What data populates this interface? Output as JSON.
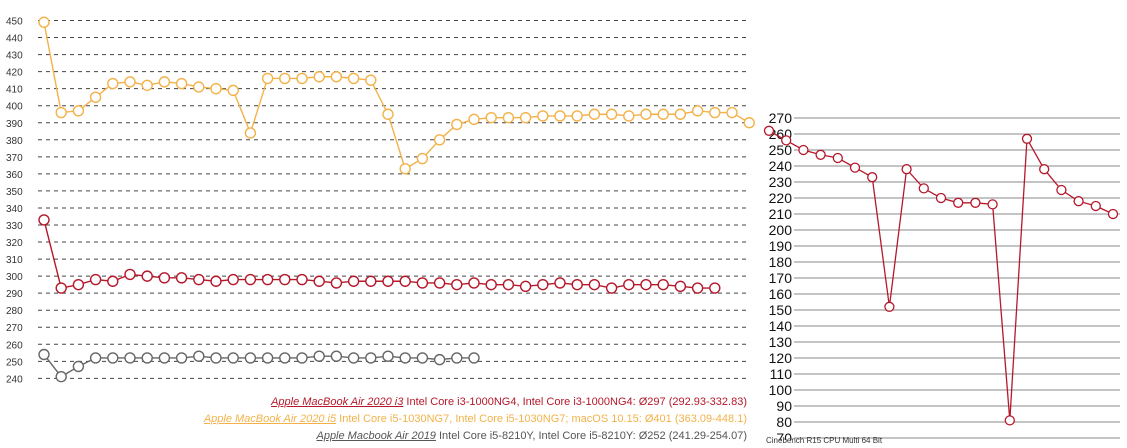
{
  "chart_data": [
    {
      "type": "line",
      "ylim": [
        232,
        455
      ],
      "y_ticks": [
        240,
        250,
        260,
        270,
        280,
        290,
        300,
        310,
        320,
        330,
        340,
        350,
        360,
        370,
        380,
        390,
        400,
        410,
        420,
        430,
        440,
        450
      ],
      "grid": true,
      "series": [
        {
          "name": "Apple MacBook Air 2020 i5",
          "color": "#f3b249",
          "values": [
            449,
            396,
            397,
            405,
            413,
            414,
            412,
            414,
            413,
            411,
            410,
            409,
            384,
            416,
            416,
            416,
            417,
            417,
            416,
            415,
            395,
            363,
            369,
            380,
            389,
            392,
            393,
            393,
            393,
            394,
            394,
            394,
            395,
            395,
            394,
            395,
            395,
            395,
            397,
            396,
            396,
            390
          ]
        },
        {
          "name": "Apple MacBook Air 2020 i3",
          "color": "#b5182b",
          "values": [
            333,
            293,
            295,
            298,
            297,
            301,
            300,
            299,
            299,
            298,
            297,
            298,
            298,
            298,
            298,
            298,
            297,
            296,
            297,
            297,
            297,
            297,
            296,
            296,
            295,
            296,
            295,
            295,
            294,
            295,
            296,
            295,
            295,
            293,
            295,
            295,
            295,
            294,
            293,
            293
          ]
        },
        {
          "name": "Apple Macbook Air 2019",
          "color": "#666666",
          "values": [
            254,
            241,
            247,
            252,
            252,
            252,
            252,
            252,
            252,
            253,
            252,
            252,
            252,
            252,
            252,
            252,
            253,
            253,
            252,
            252,
            253,
            252,
            252,
            251,
            252,
            252
          ]
        }
      ],
      "legend": [
        {
          "name": "Apple MacBook Air 2020 i3",
          "detail": " Intel Core i3-1000NG4, Intel Core i3-1000NG4: Ø297 (292.93-332.83)",
          "color": "#b5182b",
          "detail_color": "#b5182b"
        },
        {
          "name": "Apple MacBook Air 2020 i5",
          "detail": " Intel Core i5-1030NG7, Intel Core i5-1030NG7; macOS 10.15: Ø401 (363.09-448.1)",
          "color": "#f3b249",
          "detail_color": "#f3b249"
        },
        {
          "name": "Apple Macbook Air 2019",
          "detail": " Intel Core i5-8210Y, Intel Core i5-8210Y: Ø252 (241.29-254.07)",
          "color": "#555555",
          "detail_color": "#555555"
        }
      ]
    },
    {
      "type": "line",
      "title": "Cinebench R15 CPU Multi 64 Bit",
      "ylim": [
        70,
        270
      ],
      "y_ticks": [
        70,
        80,
        90,
        100,
        110,
        120,
        130,
        140,
        150,
        160,
        170,
        180,
        190,
        200,
        210,
        220,
        230,
        240,
        250,
        260,
        270
      ],
      "grid": true,
      "series": [
        {
          "color": "#b5182b",
          "values": [
            262,
            256,
            250,
            247,
            245,
            239,
            233,
            152,
            238,
            226,
            220,
            217,
            217,
            216,
            81,
            257,
            238,
            225,
            218,
            215,
            210
          ]
        }
      ]
    }
  ]
}
